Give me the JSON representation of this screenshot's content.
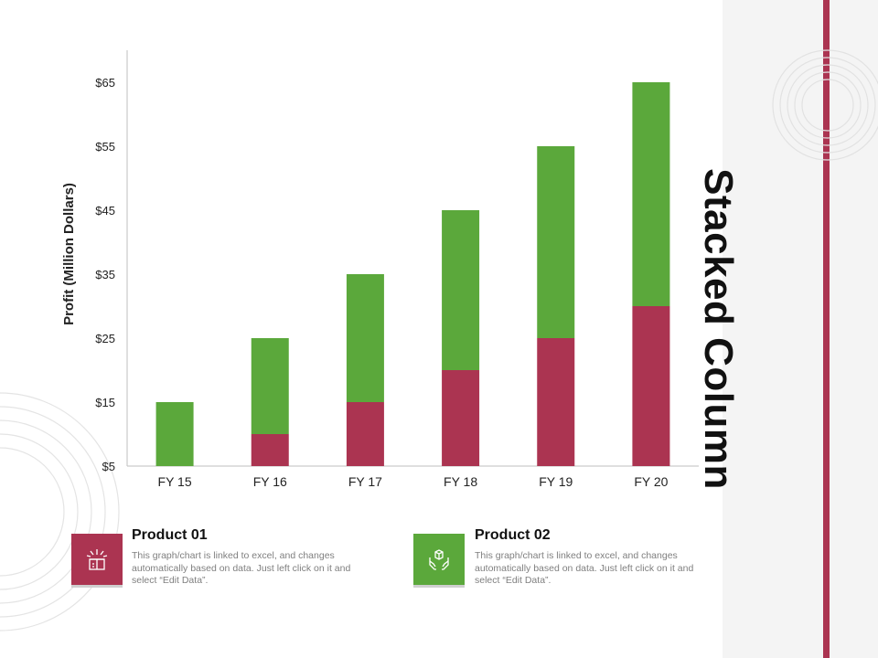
{
  "slide": {
    "title": "Stacked Column",
    "accent_color": "#ab3451",
    "panel_color": "#f4f4f4"
  },
  "legend": [
    {
      "title": "Product 01",
      "description": "This graph/chart is linked to excel, and changes automatically based on data. Just left click on it and select “Edit Data”.",
      "color": "#ab3451",
      "icon": "gift-box-icon"
    },
    {
      "title": "Product 02",
      "description": "This graph/chart is linked to excel, and changes automatically based on data. Just left click on it and select “Edit Data”.",
      "color": "#5ba83b",
      "icon": "hands-box-icon"
    }
  ],
  "chart_data": {
    "type": "bar",
    "stacked": true,
    "categories": [
      "FY 15",
      "FY 16",
      "FY 17",
      "FY 18",
      "FY 19",
      "FY 20"
    ],
    "series": [
      {
        "name": "Product 01",
        "color": "#ab3451",
        "values": [
          0,
          5,
          10,
          15,
          20,
          25
        ]
      },
      {
        "name": "Product 02",
        "color": "#5ba83b",
        "values": [
          10,
          15,
          20,
          25,
          30,
          35
        ]
      }
    ],
    "ylabel": "Profit  (Million Dollars)",
    "ylim": [
      5,
      65
    ],
    "yticks": [
      5,
      15,
      25,
      35,
      45,
      55,
      65
    ],
    "ytick_labels": [
      "$5",
      "$15",
      "$25",
      "$35",
      "$45",
      "$55",
      "$65"
    ],
    "grid": false,
    "legend_position": "bottom"
  }
}
